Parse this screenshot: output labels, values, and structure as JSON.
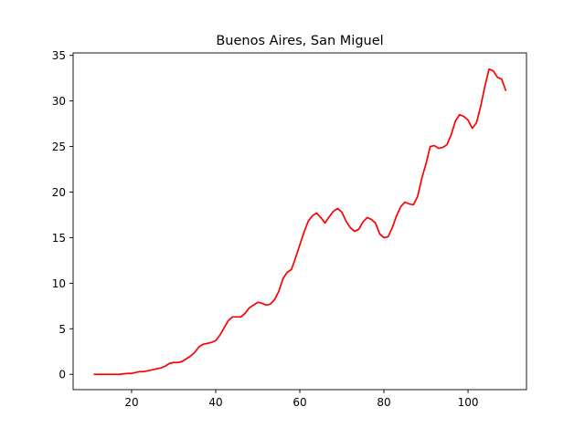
{
  "chart_data": {
    "type": "line",
    "title": "Buenos Aires, San Miguel",
    "xlabel": "",
    "ylabel": "",
    "xlim": [
      6.1,
      113.9
    ],
    "ylim": [
      -1.68,
      35.27
    ],
    "xticks": [
      20,
      40,
      60,
      80,
      100
    ],
    "yticks": [
      0,
      5,
      10,
      15,
      20,
      25,
      30,
      35
    ],
    "grid": false,
    "colors": {
      "line": "#ff0000",
      "axes": "#000000",
      "background": "#ffffff"
    },
    "series": [
      {
        "x": [
          11,
          12,
          13,
          14,
          15,
          16,
          17,
          18,
          19,
          20,
          21,
          22,
          23,
          24,
          25,
          26,
          27,
          28,
          29,
          30,
          31,
          32,
          33,
          34,
          35,
          36,
          37,
          38,
          39,
          40,
          41,
          42,
          43,
          44,
          45,
          46,
          47,
          48,
          49,
          50,
          51,
          52,
          53,
          54,
          55,
          56,
          57,
          58,
          59,
          60,
          61,
          62,
          63,
          64,
          65,
          66,
          67,
          68,
          69,
          70,
          71,
          72,
          73,
          74,
          75,
          76,
          77,
          78,
          79,
          80,
          81,
          82,
          83,
          84,
          85,
          86,
          87,
          88,
          89,
          90,
          91,
          92,
          93,
          94,
          95,
          96,
          97,
          98,
          99,
          100,
          101,
          102,
          103,
          104,
          105,
          106,
          107,
          108,
          109
        ],
        "values": [
          0,
          0,
          0,
          0,
          0,
          0,
          0,
          0.05,
          0.1,
          0.1,
          0.2,
          0.3,
          0.3,
          0.4,
          0.5,
          0.6,
          0.7,
          0.9,
          1.2,
          1.3,
          1.3,
          1.4,
          1.7,
          2,
          2.4,
          3,
          3.3,
          3.4,
          3.5,
          3.7,
          4.3,
          5.1,
          5.9,
          6.3,
          6.3,
          6.3,
          6.7,
          7.3,
          7.6,
          7.9,
          7.8,
          7.6,
          7.7,
          8.2,
          9.1,
          10.5,
          11.2,
          11.5,
          12.8,
          14.2,
          15.6,
          16.8,
          17.4,
          17.7,
          17.2,
          16.6,
          17.3,
          17.9,
          18.2,
          17.8,
          16.8,
          16.1,
          15.7,
          15.9,
          16.7,
          17.2,
          17,
          16.6,
          15.4,
          15,
          15.1,
          16.1,
          17.4,
          18.4,
          18.9,
          18.7,
          18.6,
          19.5,
          21.5,
          23.1,
          25,
          25.1,
          24.8,
          24.9,
          25.2,
          26.3,
          27.8,
          28.5,
          28.3,
          27.9,
          27,
          27.6,
          29.4,
          31.6,
          33.5,
          33.3,
          32.6,
          32.4,
          31.1
        ]
      }
    ]
  }
}
